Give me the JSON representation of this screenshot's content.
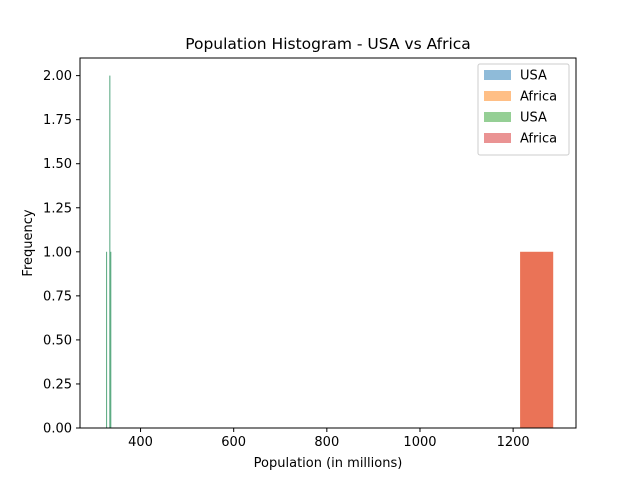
{
  "chart_data": {
    "type": "bar",
    "title": "Population Histogram - USA vs Africa",
    "xlabel": "Population (in millions)",
    "ylabel": "Frequency",
    "xlim": [
      270,
      1335
    ],
    "ylim": [
      0,
      2.1
    ],
    "xticks": [
      {
        "value": 400,
        "label": "400"
      },
      {
        "value": 600,
        "label": "600"
      },
      {
        "value": 800,
        "label": "800"
      },
      {
        "value": 1000,
        "label": "1000"
      },
      {
        "value": 1200,
        "label": "1200"
      }
    ],
    "yticks": [
      {
        "value": 0,
        "label": "0.00"
      },
      {
        "value": 0.25,
        "label": "0.25"
      },
      {
        "value": 0.5,
        "label": "0.50"
      },
      {
        "value": 0.75,
        "label": "0.75"
      },
      {
        "value": 1.0,
        "label": "1.00"
      },
      {
        "value": 1.25,
        "label": "1.25"
      },
      {
        "value": 1.5,
        "label": "1.50"
      },
      {
        "value": 1.75,
        "label": "1.75"
      },
      {
        "value": 2.0,
        "label": "2.00"
      }
    ],
    "grid": false,
    "legend_position": "top-right",
    "series": [
      {
        "name": "USA",
        "color": "#1f77b4",
        "alpha": 0.5,
        "bins": [
          {
            "x0": 326,
            "x1": 328,
            "value": 1
          },
          {
            "x0": 333,
            "x1": 335,
            "value": 2
          },
          {
            "x0": 335,
            "x1": 337,
            "value": 1
          }
        ]
      },
      {
        "name": "Africa",
        "color": "#ff7f0e",
        "alpha": 0.5,
        "bins": [
          {
            "x0": 1215,
            "x1": 1286,
            "value": 1
          }
        ]
      },
      {
        "name": "USA",
        "color": "#2ca02c",
        "alpha": 0.5,
        "bins": [
          {
            "x0": 326,
            "x1": 328,
            "value": 1
          },
          {
            "x0": 333,
            "x1": 335,
            "value": 2
          },
          {
            "x0": 335,
            "x1": 337,
            "value": 1
          }
        ]
      },
      {
        "name": "Africa",
        "color": "#d62728",
        "alpha": 0.5,
        "bins": [
          {
            "x0": 1215,
            "x1": 1286,
            "value": 1
          }
        ]
      }
    ]
  }
}
